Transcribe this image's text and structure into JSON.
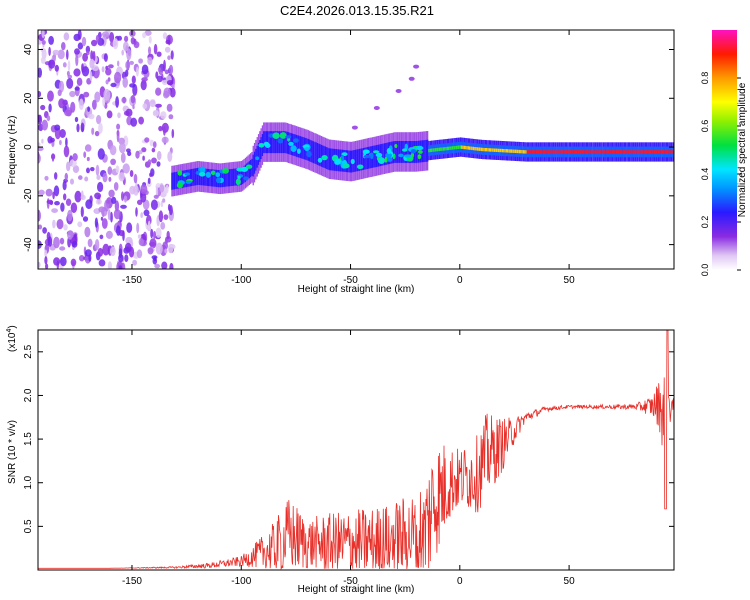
{
  "title": "C2E4.2026.013.15.35.R21",
  "chart_data": [
    {
      "type": "heatmap",
      "title": "C2E4.2026.013.15.35.R21",
      "xlabel": "Height of straight line (km)",
      "ylabel": "Frequency (Hz)",
      "xlim": [
        -193,
        98
      ],
      "ylim": [
        -50,
        48
      ],
      "x_ticks": [
        -150,
        -100,
        -50,
        0,
        50
      ],
      "y_ticks": [
        -40,
        -20,
        0,
        20,
        40
      ],
      "noise_region_x": [
        -193,
        -131
      ],
      "ridge": [
        {
          "x": -132,
          "y": -14
        },
        {
          "x": -120,
          "y": -12
        },
        {
          "x": -110,
          "y": -13
        },
        {
          "x": -100,
          "y": -12
        },
        {
          "x": -95,
          "y": -8
        },
        {
          "x": -90,
          "y": 2
        },
        {
          "x": -80,
          "y": 2
        },
        {
          "x": -70,
          "y": -1
        },
        {
          "x": -60,
          "y": -5
        },
        {
          "x": -50,
          "y": -6
        },
        {
          "x": -40,
          "y": -4
        },
        {
          "x": -30,
          "y": -2
        },
        {
          "x": -20,
          "y": -2
        },
        {
          "x": -10,
          "y": -1
        },
        {
          "x": 0,
          "y": 0
        },
        {
          "x": 10,
          "y": -1
        },
        {
          "x": 30,
          "y": -2
        },
        {
          "x": 60,
          "y": -2
        },
        {
          "x": 98,
          "y": -2
        }
      ],
      "harmonic_streak": [
        {
          "x": -48,
          "y": 8
        },
        {
          "x": -38,
          "y": 16
        },
        {
          "x": -28,
          "y": 23
        },
        {
          "x": -22,
          "y": 28
        },
        {
          "x": -20,
          "y": 33
        }
      ]
    },
    {
      "type": "colorbar",
      "label": "Normalized spectral amplitude",
      "range": [
        0,
        1
      ],
      "ticks": [
        "0.0",
        "0.2",
        "0.4",
        "0.6",
        "0.8"
      ]
    },
    {
      "type": "line",
      "xlabel": "Height of straight line (km)",
      "ylabel": "SNR (10 * v/v)",
      "scale_label": "(x10",
      "scale_exp": "4",
      "scale_close": ")",
      "xlim": [
        -193,
        98
      ],
      "ylim": [
        0,
        2.75
      ],
      "x_ticks": [
        -150,
        -100,
        -50,
        0,
        50
      ],
      "y_ticks": [
        "0.5",
        "1.0",
        "1.5",
        "2.0",
        "2.5"
      ],
      "series": [
        {
          "name": "SNR",
          "color": "#e8302a",
          "x": [
            -193,
            -160,
            -130,
            -115,
            -100,
            -95,
            -85,
            -78,
            -70,
            -60,
            -50,
            -40,
            -30,
            -20,
            -15,
            -12,
            -8,
            -5,
            0,
            8,
            12,
            20,
            25,
            30,
            40,
            50,
            60,
            80,
            88,
            92,
            94,
            96,
            98
          ],
          "y_mean": [
            0.02,
            0.02,
            0.03,
            0.05,
            0.1,
            0.15,
            0.25,
            0.4,
            0.3,
            0.3,
            0.3,
            0.32,
            0.35,
            0.4,
            0.5,
            0.8,
            0.9,
            1.0,
            1.05,
            1.1,
            1.3,
            1.45,
            1.6,
            1.75,
            1.85,
            1.87,
            1.87,
            1.87,
            1.88,
            1.9,
            1.7,
            1.9,
            1.85
          ],
          "y_amp": [
            0.0,
            0.0,
            0.01,
            0.03,
            0.06,
            0.12,
            0.3,
            0.45,
            0.3,
            0.35,
            0.4,
            0.4,
            0.45,
            0.5,
            0.7,
            0.7,
            0.6,
            0.45,
            0.35,
            0.45,
            0.5,
            0.3,
            0.15,
            0.06,
            0.03,
            0.02,
            0.02,
            0.03,
            0.12,
            0.35,
            0.7,
            0.25,
            0.1
          ]
        }
      ]
    }
  ]
}
